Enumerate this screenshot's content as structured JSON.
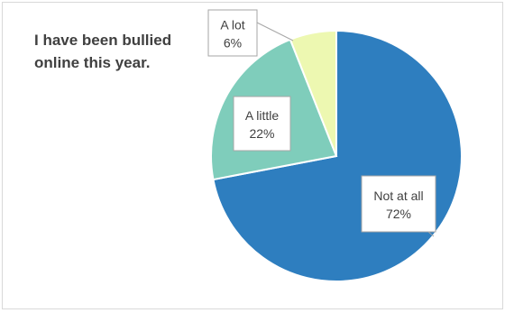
{
  "chart_data": {
    "type": "pie",
    "title": "I have been bullied online this year.",
    "categories": [
      "Not at all",
      "A little",
      "A lot"
    ],
    "values": [
      72,
      22,
      6
    ],
    "labels": [
      "72%",
      "22%",
      "6%"
    ],
    "colors": [
      "#2e7ebf",
      "#7fcdbb",
      "#edf8b1"
    ],
    "legend": "none"
  }
}
